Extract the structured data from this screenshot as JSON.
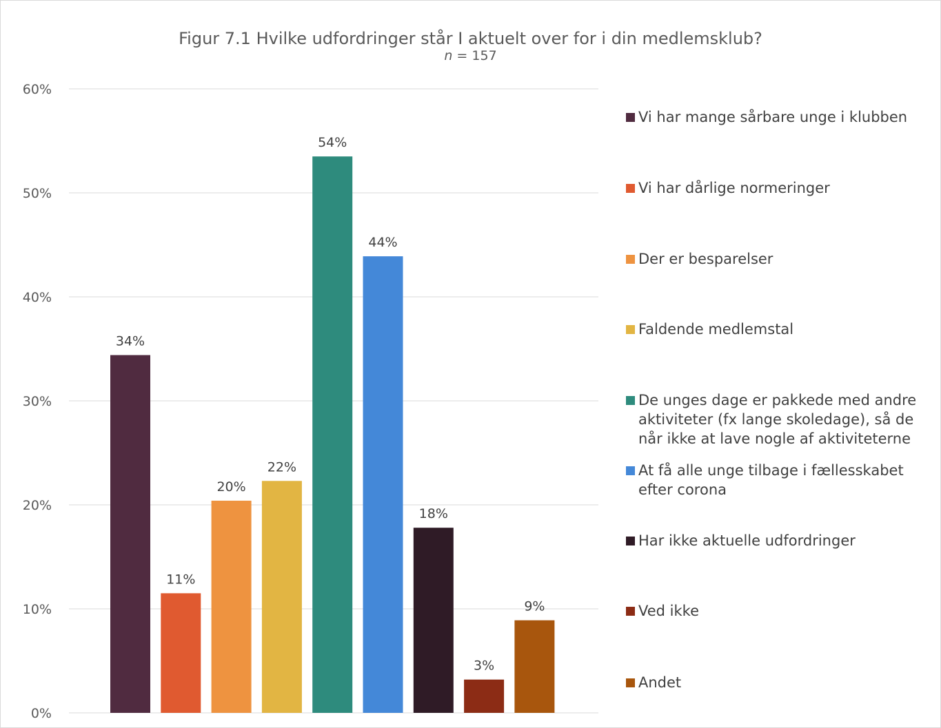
{
  "chart_data": {
    "type": "bar",
    "title": "Figur 7.1 Hvilke udfordringer står I aktuelt over for i din medlemsklub?",
    "subtitle_n": "n",
    "subtitle_rest": " = 157",
    "ylim": [
      0,
      60
    ],
    "yticks": [
      "0%",
      "10%",
      "20%",
      "30%",
      "40%",
      "50%",
      "60%"
    ],
    "ytick_values": [
      0,
      10,
      20,
      30,
      40,
      50,
      60
    ],
    "grid": true,
    "legend_position": "right",
    "categories": [
      "Vi har mange sårbare unge i klubben",
      "Vi har dårlige normeringer",
      "Der er besparelser",
      "Faldende medlemstal",
      "De unges dage er pakkede med andre aktiviteter (fx lange skoledage), så de når ikke at lave nogle af aktiviteterne",
      "At få alle unge tilbage i fællesskabet efter corona",
      "Har ikke aktuelle udfordringer",
      "Ved ikke",
      "Andet"
    ],
    "values": [
      34.4,
      11.5,
      20.4,
      22.3,
      53.5,
      43.9,
      17.8,
      3.2,
      8.9
    ],
    "data_labels": [
      "34%",
      "11%",
      "20%",
      "22%",
      "54%",
      "44%",
      "18%",
      "3%",
      "9%"
    ],
    "colors": [
      "#502b40",
      "#e05a30",
      "#ee9340",
      "#e2b543",
      "#2e8b7d",
      "#4488d8",
      "#2f1b26",
      "#8c2c15",
      "#a8560d"
    ]
  }
}
